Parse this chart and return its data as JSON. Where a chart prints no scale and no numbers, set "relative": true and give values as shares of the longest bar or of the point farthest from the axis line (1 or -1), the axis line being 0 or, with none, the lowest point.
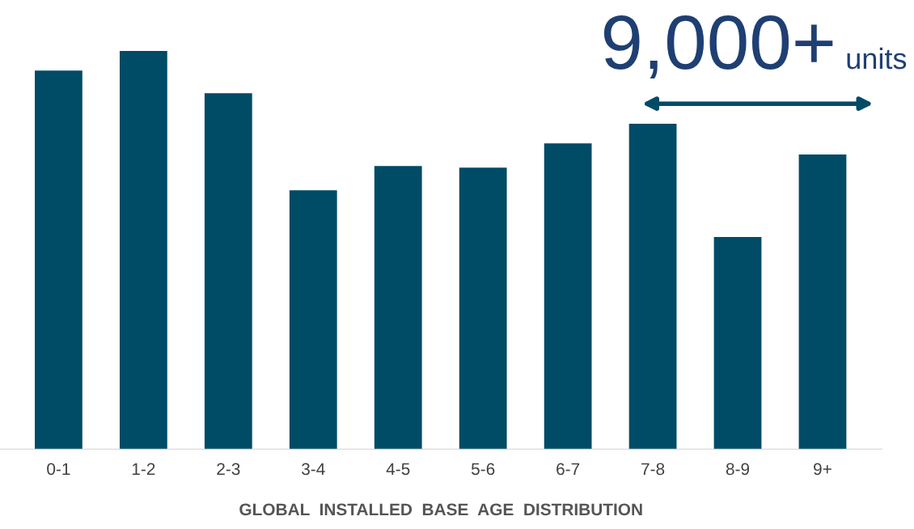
{
  "chart_data": {
    "type": "bar",
    "relative": true,
    "xlabel": "GLOBAL  INSTALLED  BASE  AGE  DISTRIBUTION",
    "categories": [
      "0-1",
      "1-2",
      "2-3",
      "3-4",
      "4-5",
      "5-6",
      "6-7",
      "7-8",
      "8-9",
      "9+"
    ],
    "values": [
      0.951,
      1,
      0.894,
      0.65,
      0.711,
      0.707,
      0.768,
      0.817,
      0.533,
      0.74
    ],
    "color": "#004b66",
    "annotations": [
      "9,000+",
      "units"
    ],
    "grid": false,
    "legend": false
  }
}
